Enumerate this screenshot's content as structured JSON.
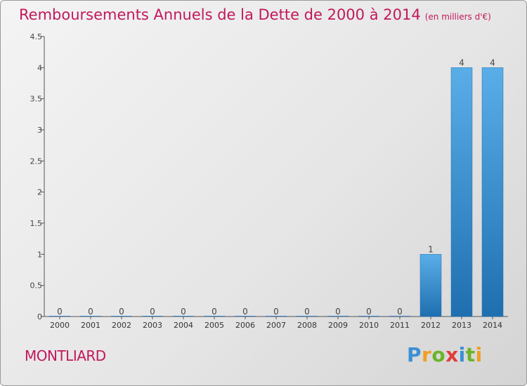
{
  "title": "Remboursements Annuels de la Dette de 2000 à 2014",
  "unit": "(en milliers d'€)",
  "city": "MONTLIARD",
  "brand": "Proxiti",
  "colors": {
    "title": "#c2185b",
    "bar_top": "#5aaee8",
    "bar_bottom": "#1f6fb0"
  },
  "chart_data": {
    "type": "bar",
    "categories": [
      "2000",
      "2001",
      "2002",
      "2003",
      "2004",
      "2005",
      "2006",
      "2007",
      "2008",
      "2009",
      "2010",
      "2011",
      "2012",
      "2013",
      "2014"
    ],
    "values": [
      0,
      0,
      0,
      0,
      0,
      0,
      0,
      0,
      0,
      0,
      0,
      0,
      1,
      4,
      4
    ],
    "value_labels": [
      "0",
      "0",
      "0",
      "0",
      "0",
      "0",
      "0",
      "0",
      "0",
      "0",
      "0",
      "0",
      "1",
      "4",
      "4"
    ],
    "y_ticks": [
      0,
      0.5,
      1,
      1.5,
      2,
      2.5,
      3,
      3.5,
      4,
      4.5
    ],
    "y_tick_labels": [
      "0",
      "0.5",
      "1",
      "1.5",
      "2",
      "2.5",
      "3",
      "3.5",
      "4",
      "4.5"
    ],
    "ylim": [
      0,
      4.5
    ],
    "title": "Remboursements Annuels de la Dette de 2000 à 2014",
    "xlabel": "",
    "ylabel": "",
    "grid": false,
    "legend": "none"
  }
}
